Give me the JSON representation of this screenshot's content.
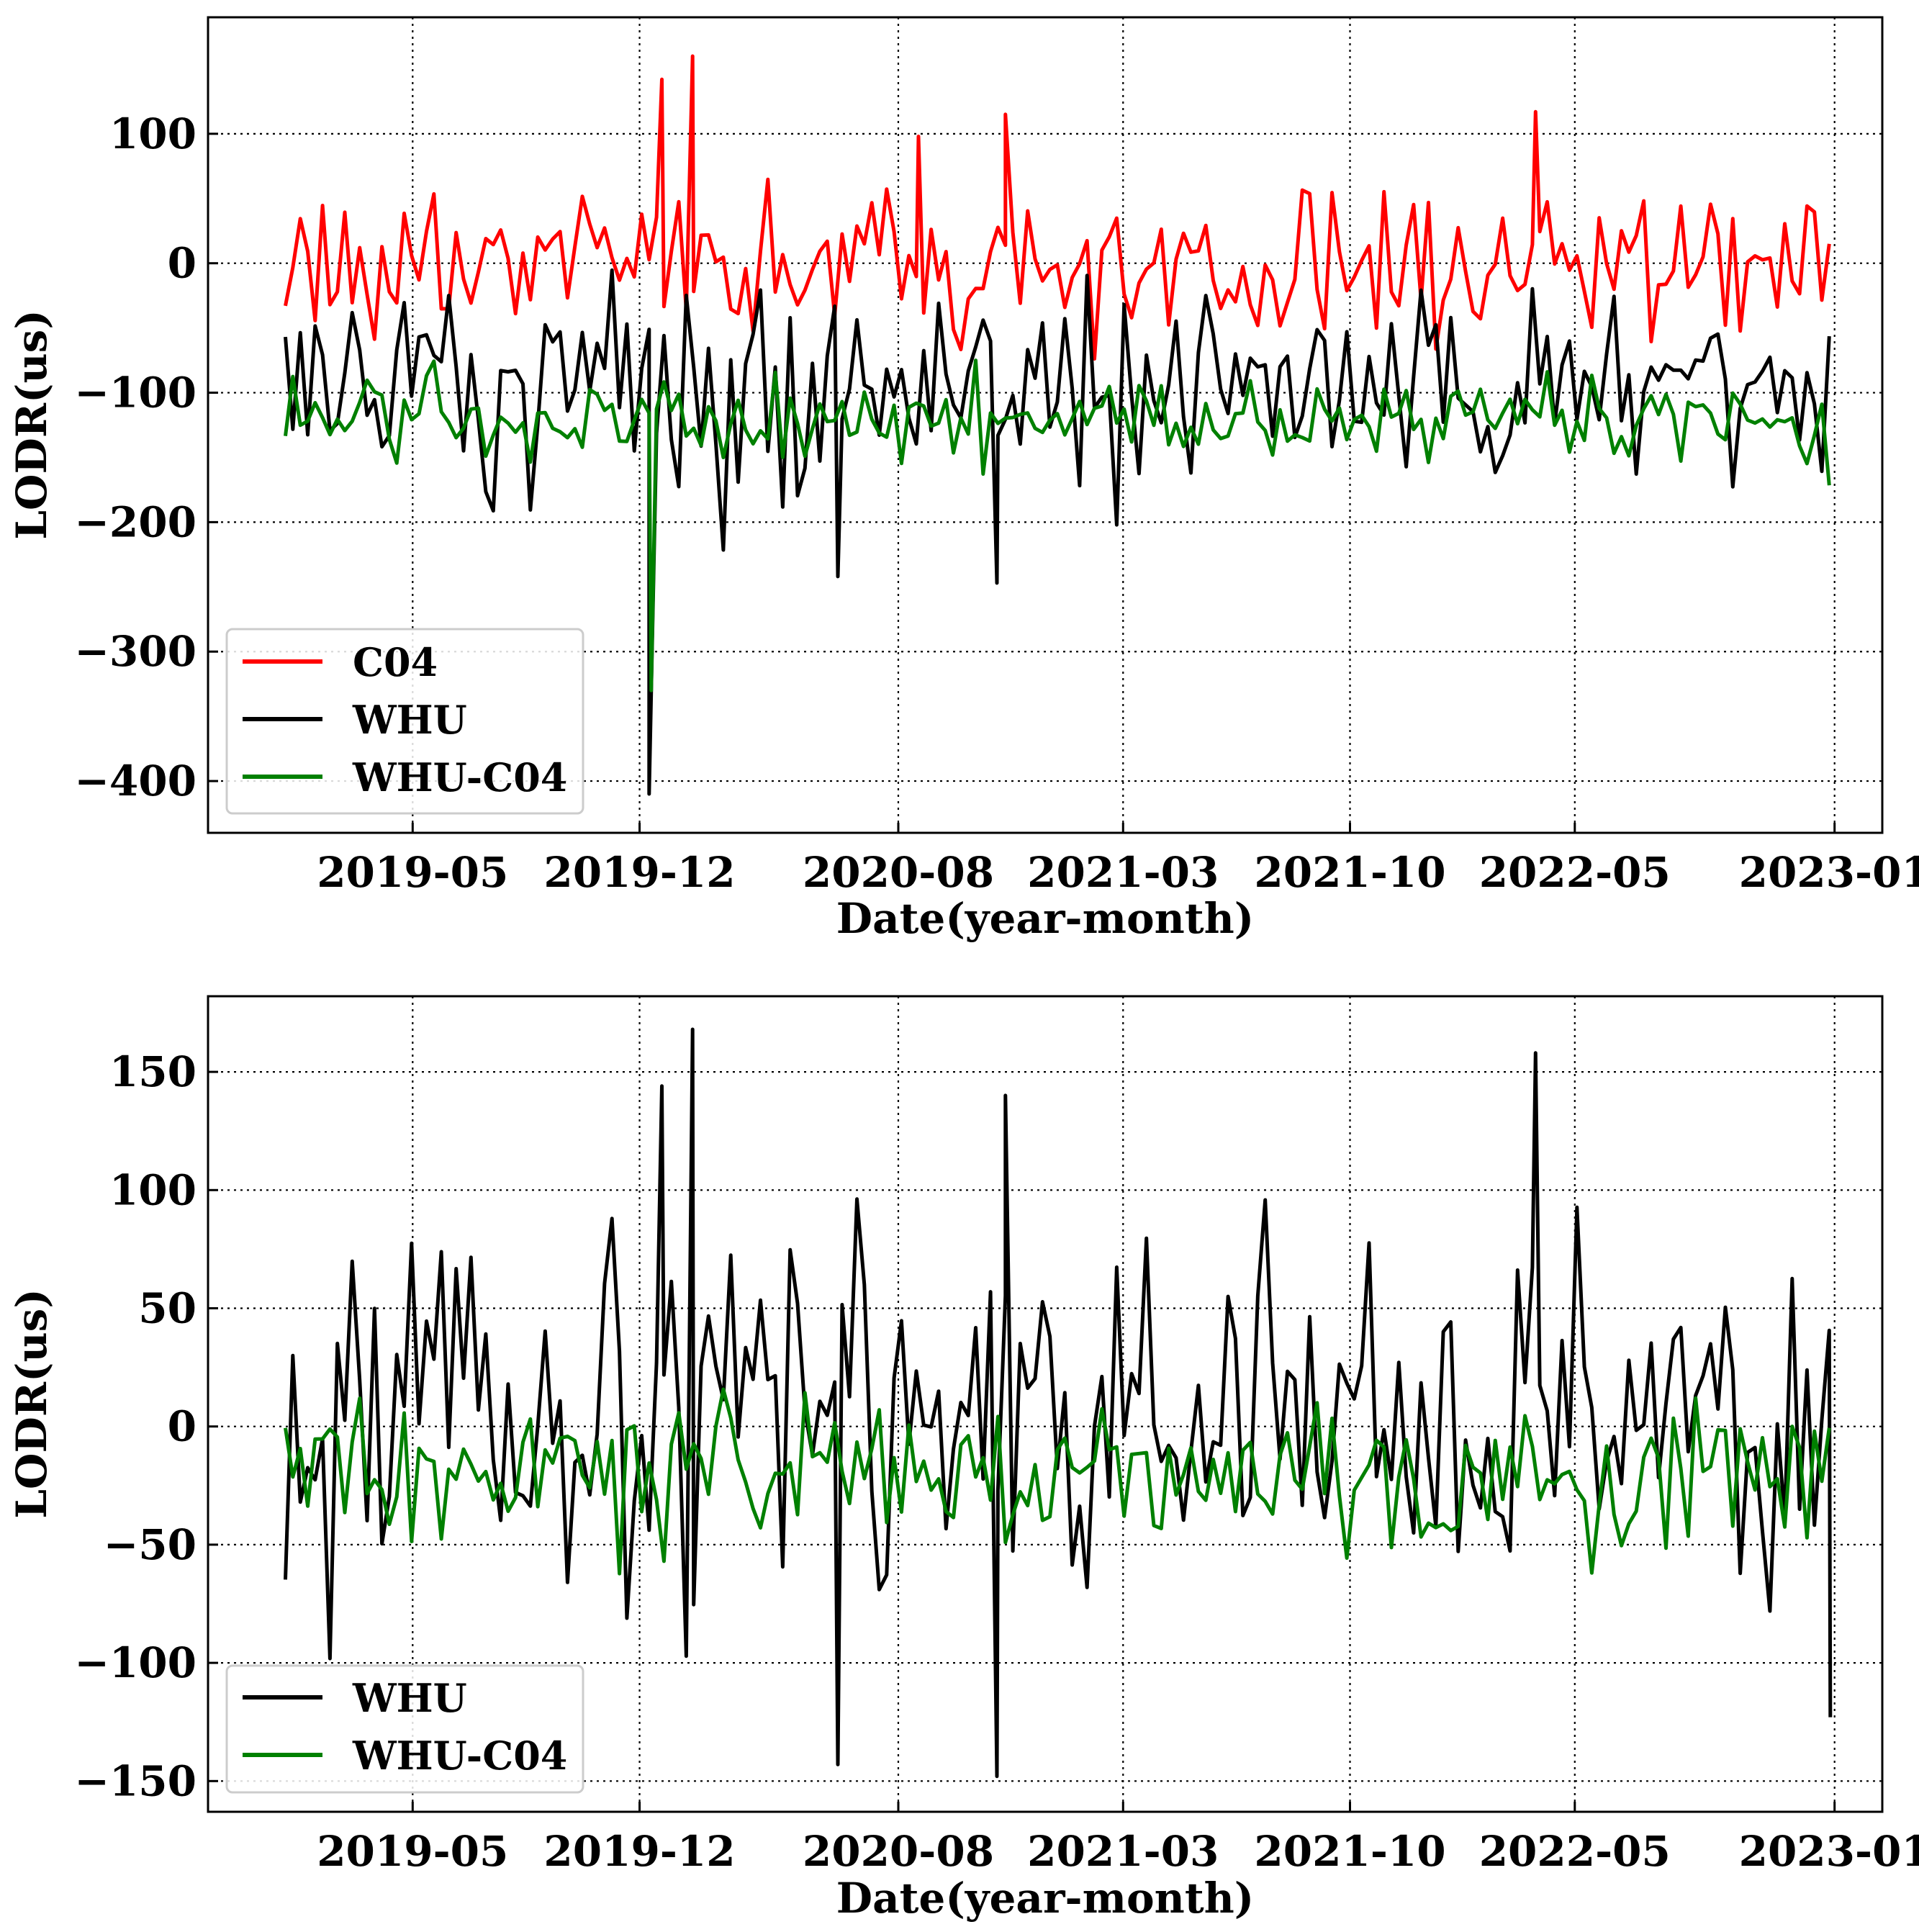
{
  "chart_data": [
    {
      "type": "line",
      "xlabel": "Date(year-month)",
      "ylabel": "LODR(us)",
      "x_range": [
        "2019-01-01",
        "2022-12-31"
      ],
      "xlim": [
        "2018-10-20",
        "2023-02-15"
      ],
      "ylim": [
        -440,
        190
      ],
      "xticks": [
        "2019-05",
        "2019-12",
        "2020-08",
        "2021-03",
        "2021-10",
        "2022-05",
        "2023-01"
      ],
      "yticks": [
        100,
        0,
        -100,
        -200,
        -300,
        -400
      ],
      "grid": true,
      "legend_position": "lower-left",
      "series": [
        {
          "name": "C04",
          "color": "#ff0000",
          "mean": 0,
          "amplitude": 28,
          "sampled_every_days": 7,
          "min": -95,
          "max": 160
        },
        {
          "name": "WHU",
          "color": "#000000",
          "mean": -95,
          "amplitude": 38,
          "sampled_every_days": 7,
          "min": -410,
          "max": 70
        },
        {
          "name": "WHU-C04",
          "color": "#008000",
          "mean": -120,
          "amplitude": 15,
          "sampled_every_days": 7,
          "min": -330,
          "max": -75
        }
      ],
      "annotations": [
        {
          "series": "C04",
          "date": "2019-12-22",
          "value": 142
        },
        {
          "series": "C04",
          "date": "2020-01-20",
          "value": 160
        },
        {
          "series": "C04",
          "date": "2020-08-20",
          "value": 98
        },
        {
          "series": "C04",
          "date": "2020-11-10",
          "value": 115
        },
        {
          "series": "C04",
          "date": "2022-03-25",
          "value": 117
        },
        {
          "series": "WHU",
          "date": "2019-12-10",
          "value": -410
        },
        {
          "series": "WHU",
          "date": "2020-11-02",
          "value": -247
        },
        {
          "series": "WHU",
          "date": "2020-06-05",
          "value": -242
        },
        {
          "series": "WHU-C04",
          "date": "2019-12-12",
          "value": -330
        }
      ]
    },
    {
      "type": "line",
      "xlabel": "Date(year-month)",
      "ylabel": "LODR(us)",
      "x_range": [
        "2019-01-01",
        "2022-12-31"
      ],
      "xlim": [
        "2018-10-20",
        "2023-02-15"
      ],
      "ylim": [
        -163,
        182
      ],
      "xticks": [
        "2019-05",
        "2019-12",
        "2020-08",
        "2021-03",
        "2021-10",
        "2022-05",
        "2023-01"
      ],
      "yticks": [
        150,
        100,
        50,
        0,
        -50,
        -100,
        -150
      ],
      "grid": true,
      "legend_position": "lower-left",
      "series": [
        {
          "name": "WHU",
          "color": "#000000",
          "mean": 5,
          "amplitude": 38,
          "sampled_every_days": 7,
          "min": -148,
          "max": 168
        },
        {
          "name": "WHU-C04",
          "color": "#008000",
          "mean": -20,
          "amplitude": 15,
          "sampled_every_days": 7,
          "min": -63,
          "max": 22
        }
      ],
      "annotations": [
        {
          "series": "WHU",
          "date": "2020-01-20",
          "value": 168
        },
        {
          "series": "WHU",
          "date": "2022-03-25",
          "value": 158
        },
        {
          "series": "WHU",
          "date": "2019-12-22",
          "value": 144
        },
        {
          "series": "WHU",
          "date": "2020-11-10",
          "value": 140
        },
        {
          "series": "WHU",
          "date": "2020-11-02",
          "value": -148
        },
        {
          "series": "WHU",
          "date": "2020-06-05",
          "value": -143
        },
        {
          "series": "WHU",
          "date": "2022-12-28",
          "value": -123
        }
      ]
    }
  ]
}
